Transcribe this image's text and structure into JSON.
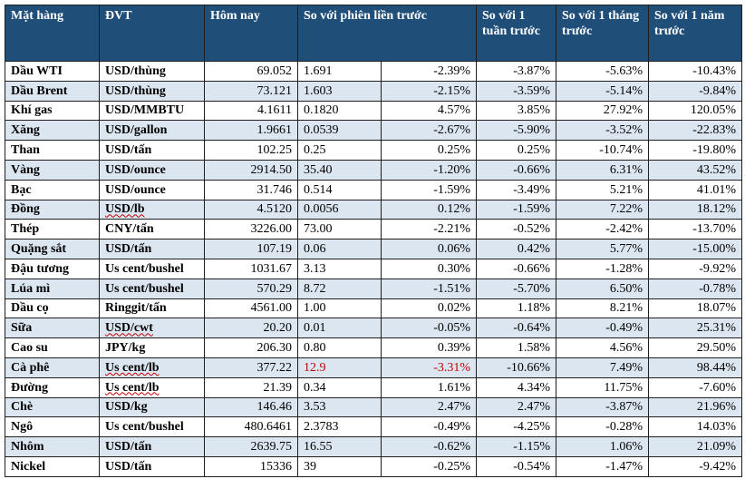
{
  "headers": [
    "Mặt hàng",
    "ĐVT",
    "Hôm nay",
    "So với phiên liền trước",
    "So với 1 tuần trước",
    "So với 1 tháng trước",
    "So với 1 năm trước"
  ],
  "rows": [
    {
      "name": "Dầu WTI",
      "unit": "USD/thùng",
      "today": "69.052",
      "change": "1.691",
      "change_pct": "-2.39%",
      "week": "-3.87%",
      "month": "-5.63%",
      "year": "-10.43%"
    },
    {
      "name": "Dầu Brent",
      "unit": "USD/thùng",
      "today": "73.121",
      "change": "1.603",
      "change_pct": "-2.15%",
      "week": "-3.59%",
      "month": "-5.14%",
      "year": "-9.84%"
    },
    {
      "name": "Khí gas",
      "unit": "USD/MMBTU",
      "today": "4.1611",
      "change": "0.1820",
      "change_pct": "4.57%",
      "week": "3.85%",
      "month": "27.92%",
      "year": "120.05%"
    },
    {
      "name": "Xăng",
      "unit": "USD/gallon",
      "today": "1.9661",
      "change": "0.0539",
      "change_pct": "-2.67%",
      "week": "-5.90%",
      "month": "-3.52%",
      "year": "-22.83%"
    },
    {
      "name": "Than",
      "unit": "USD/tấn",
      "today": "102.25",
      "change": "0.25",
      "change_pct": "0.25%",
      "week": "0.25%",
      "month": "-10.74%",
      "year": "-19.80%"
    },
    {
      "name": "Vàng",
      "unit": "USD/ounce",
      "today": "2914.50",
      "change": "35.40",
      "change_pct": "-1.20%",
      "week": "-0.66%",
      "month": "6.31%",
      "year": "43.52%"
    },
    {
      "name": "Bạc",
      "unit": "USD/ounce",
      "today": "31.746",
      "change": "0.514",
      "change_pct": "-1.59%",
      "week": "-3.49%",
      "month": "5.21%",
      "year": "41.01%"
    },
    {
      "name": "Đồng",
      "unit": "USD/lb",
      "today": "4.5120",
      "change": "0.0056",
      "change_pct": "0.12%",
      "week": "-1.59%",
      "month": "7.22%",
      "year": "18.12%"
    },
    {
      "name": "Thép",
      "unit": "CNY/tấn",
      "today": "3226.00",
      "change": "73.00",
      "change_pct": "-2.21%",
      "week": "-0.52%",
      "month": "-2.42%",
      "year": "-13.70%"
    },
    {
      "name": "Quặng sắt",
      "unit": "USD/tấn",
      "today": "107.19",
      "change": "0.06",
      "change_pct": "0.06%",
      "week": "0.42%",
      "month": "5.77%",
      "year": "-15.00%"
    },
    {
      "name": "Đậu tương",
      "unit": "Us cent/bushel",
      "today": "1031.67",
      "change": "3.13",
      "change_pct": "0.30%",
      "week": "-0.66%",
      "month": "-1.28%",
      "year": "-9.92%"
    },
    {
      "name": "Lúa mì",
      "unit": "Us cent/bushel",
      "today": "570.29",
      "change": "8.72",
      "change_pct": "-1.51%",
      "week": "-5.70%",
      "month": "6.50%",
      "year": "-0.78%"
    },
    {
      "name": "Dầu cọ",
      "unit": "Ringgit/tấn",
      "today": "4561.00",
      "change": "1.00",
      "change_pct": "0.02%",
      "week": "1.18%",
      "month": "8.21%",
      "year": "18.07%"
    },
    {
      "name": "Sữa",
      "unit": "USD/cwt",
      "today": "20.20",
      "change": "0.01",
      "change_pct": "-0.05%",
      "week": "-0.64%",
      "month": "-0.49%",
      "year": "25.31%"
    },
    {
      "name": "Cao su",
      "unit": "JPY/kg",
      "today": "206.30",
      "change": "0.80",
      "change_pct": "0.39%",
      "week": "1.58%",
      "month": "4.56%",
      "year": "29.50%"
    },
    {
      "name": "Cà phê",
      "unit": "Us cent/lb",
      "today": "377.22",
      "change": "12.9",
      "change_pct": "-3.31%",
      "week": "-10.66%",
      "month": "7.49%",
      "year": "98.44%"
    },
    {
      "name": "Đường",
      "unit": "Us cent/lb",
      "today": "21.39",
      "change": "0.34",
      "change_pct": "1.61%",
      "week": "4.34%",
      "month": "11.75%",
      "year": "-7.60%"
    },
    {
      "name": "Chè",
      "unit": "USD/kg",
      "today": "146.46",
      "change": "3.53",
      "change_pct": "2.47%",
      "week": "2.47%",
      "month": "-3.87%",
      "year": "21.96%"
    },
    {
      "name": "Ngô",
      "unit": "Us cent/bushel",
      "today": "480.6461",
      "change": "2.3783",
      "change_pct": "-0.49%",
      "week": "-4.25%",
      "month": "-0.28%",
      "year": "14.03%"
    },
    {
      "name": "Nhôm",
      "unit": "USD/tấn",
      "today": "2639.75",
      "change": "16.55",
      "change_pct": "-0.62%",
      "week": "-1.15%",
      "month": "1.06%",
      "year": "21.09%"
    },
    {
      "name": "Nickel",
      "unit": "USD/tấn",
      "today": "15336",
      "change": "39",
      "change_pct": "-0.25%",
      "week": "-0.54%",
      "month": "-1.47%",
      "year": "-9.42%"
    }
  ],
  "colors": {
    "header_bg": "#1f4e79",
    "header_text": "#ffffff",
    "alt_row_bg": "#dce6f1",
    "highlight_text": "#c00000",
    "border": "#1f1f1f"
  }
}
